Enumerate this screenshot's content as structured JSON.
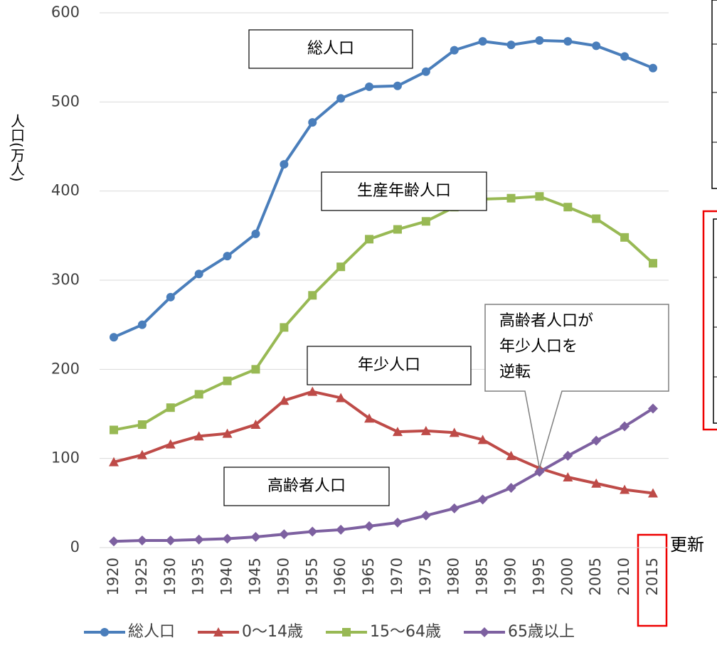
{
  "chart_data": {
    "type": "line",
    "y_label": "人口(万人)",
    "categories": [
      "1920",
      "1925",
      "1930",
      "1935",
      "1940",
      "1945",
      "1950",
      "1955",
      "1960",
      "1965",
      "1970",
      "1975",
      "1980",
      "1985",
      "1990",
      "1995",
      "2000",
      "2005",
      "2010",
      "2015"
    ],
    "series": [
      {
        "name": "総人口",
        "color": "#4a7ebb",
        "marker": "circle",
        "values": [
          236,
          250,
          281,
          307,
          327,
          352,
          430,
          477,
          504,
          517,
          518,
          534,
          558,
          568,
          564,
          569,
          568,
          563,
          551,
          538
        ]
      },
      {
        "name": "0〜14歳",
        "color": "#be4b48",
        "marker": "triangle",
        "values": [
          96,
          104,
          116,
          125,
          128,
          138,
          165,
          175,
          168,
          145,
          130,
          131,
          129,
          121,
          103,
          89,
          79,
          72,
          65,
          61
        ]
      },
      {
        "name": "15〜64歳",
        "color": "#98b954",
        "marker": "square",
        "values": [
          132,
          138,
          157,
          172,
          187,
          200,
          247,
          283,
          315,
          346,
          357,
          366,
          382,
          391,
          392,
          394,
          382,
          369,
          348,
          319
        ]
      },
      {
        "name": "65歳以上",
        "color": "#7d60a0",
        "marker": "diamond",
        "values": [
          7,
          8,
          8,
          9,
          10,
          12,
          15,
          18,
          20,
          24,
          28,
          36,
          44,
          54,
          67,
          85,
          103,
          120,
          136,
          156
        ]
      }
    ],
    "ylim": [
      0,
      600
    ],
    "yticks": [
      0,
      100,
      200,
      300,
      400,
      500,
      600
    ],
    "grid": true,
    "legend": "bottom",
    "annotations": [
      "総人口",
      "生産年齢人口",
      "年少人口",
      "高齢者人口"
    ],
    "callout": [
      "高齢者人口が",
      "年少人口を",
      "逆転"
    ],
    "side_text": "更新"
  }
}
